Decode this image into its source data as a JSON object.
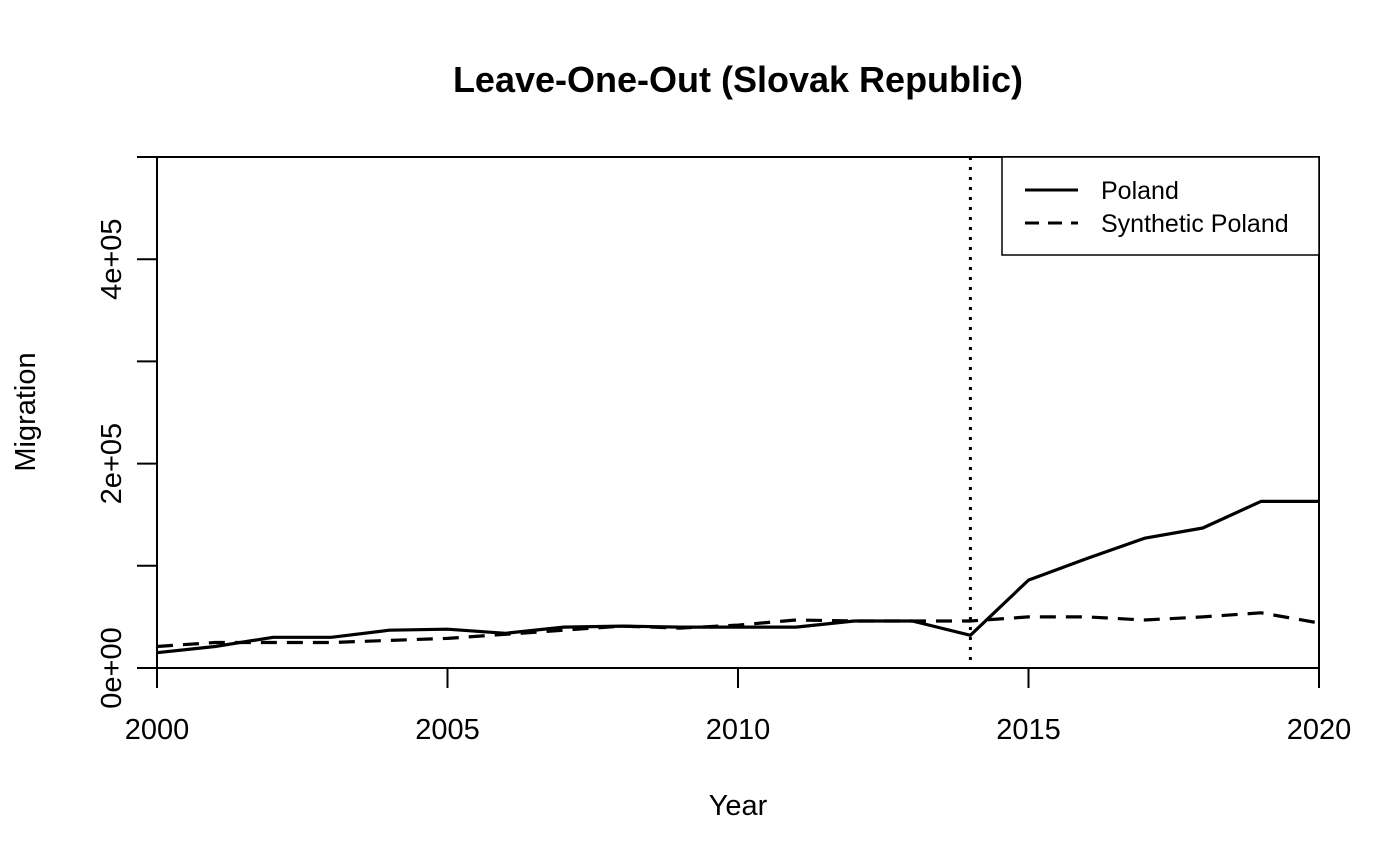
{
  "chart_data": {
    "type": "line",
    "title": "Leave-One-Out (Slovak Republic)",
    "xlabel": "Year",
    "ylabel": "Migration",
    "xlim": [
      2000,
      2020
    ],
    "ylim": [
      0,
      500000
    ],
    "x_ticks": [
      2000,
      2005,
      2010,
      2015,
      2020
    ],
    "x_tick_labels": [
      "2000",
      "2005",
      "2010",
      "2015",
      "2020"
    ],
    "y_ticks": [
      0,
      100000,
      200000,
      300000,
      400000,
      500000
    ],
    "y_tick_labels": [
      "0e+00",
      "",
      "2e+05",
      "",
      "4e+05",
      ""
    ],
    "grid": false,
    "legend_position": "top-right",
    "x": [
      2000,
      2001,
      2002,
      2003,
      2004,
      2005,
      2006,
      2007,
      2008,
      2009,
      2010,
      2011,
      2012,
      2013,
      2014,
      2015,
      2016,
      2017,
      2018,
      2019,
      2020
    ],
    "series": [
      {
        "name": "Poland",
        "style": "solid",
        "color": "#000000",
        "values": [
          15000,
          21000,
          30000,
          30000,
          37000,
          38000,
          34000,
          40000,
          41000,
          40000,
          40000,
          40000,
          46000,
          46000,
          32000,
          86000,
          107000,
          127000,
          137000,
          163000,
          163000
        ]
      },
      {
        "name": "Synthetic Poland",
        "style": "dashed",
        "color": "#000000",
        "values": [
          21000,
          25000,
          25000,
          25000,
          27000,
          29000,
          33000,
          37000,
          41000,
          39000,
          42000,
          47000,
          46000,
          46000,
          46000,
          50000,
          50000,
          47000,
          50000,
          54000,
          44000
        ]
      }
    ],
    "annotations": [
      {
        "type": "vline",
        "x": 2014,
        "style": "dotted"
      }
    ]
  }
}
